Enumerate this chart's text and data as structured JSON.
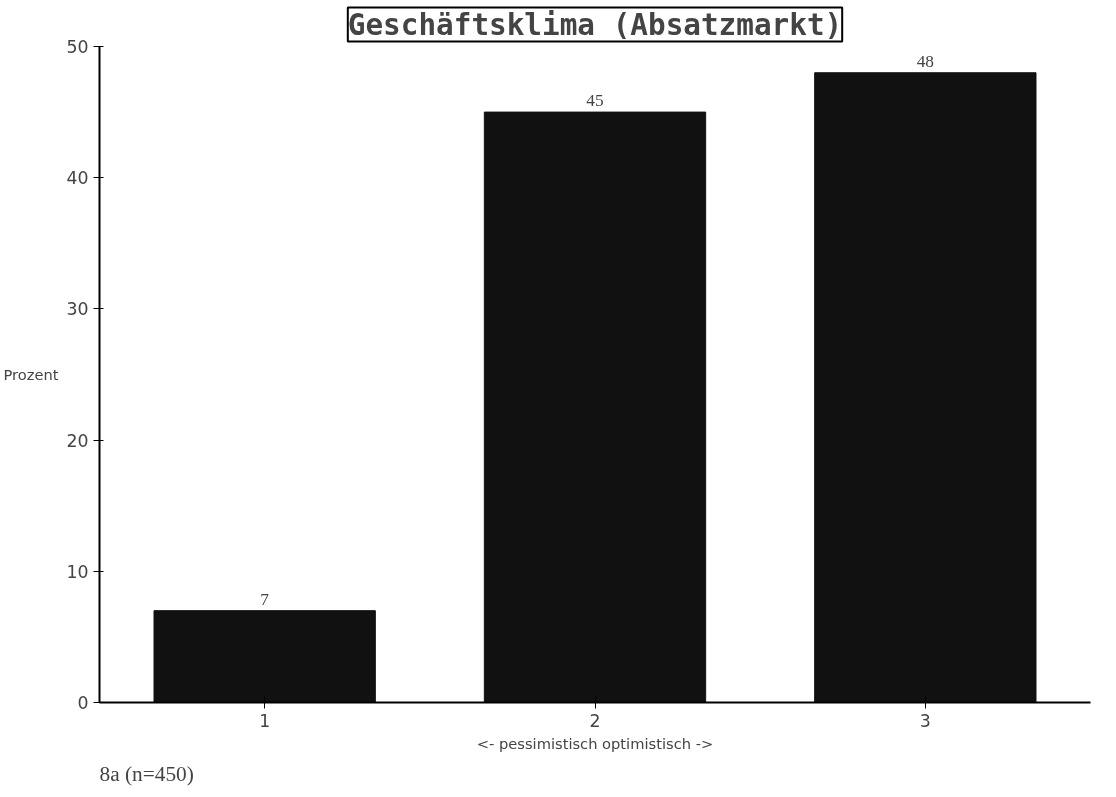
{
  "chart_data": {
    "type": "bar",
    "title": "Geschäftsklima (Absatzmarkt)",
    "categories": [
      "1",
      "2",
      "3"
    ],
    "values": [
      7,
      45,
      48
    ],
    "color": "#111111",
    "ylabel": "Prozent",
    "xlabel": "<- pessimistisch optimistisch ->",
    "ylim": [
      0,
      50
    ],
    "yticks": [
      0,
      10,
      20,
      30,
      40,
      50
    ],
    "data_labels": true,
    "grid": false,
    "annotations": [
      "8a   (n=450)"
    ]
  }
}
